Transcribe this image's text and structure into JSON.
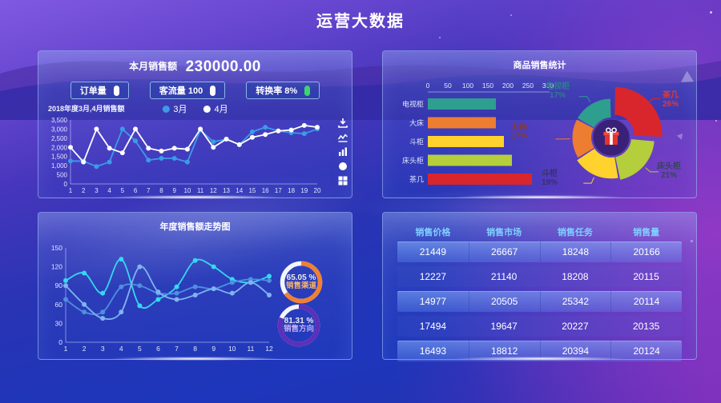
{
  "page_title": "运营大数据",
  "panel_sales": {
    "header_label": "本月销售额",
    "header_value": "230000.00",
    "buttons": [
      {
        "label": "订单量",
        "icon": "pill-indicator-icon",
        "icon_color": "#FFFFFF"
      },
      {
        "label": "客流量 100",
        "icon": "pill-indicator-icon",
        "icon_color": "#FFFFFF"
      },
      {
        "label": "转换率 8%",
        "icon": "pill-indicator-icon",
        "icon_color": "#3BD56B"
      }
    ],
    "toolbox": [
      "save-image-icon",
      "line-type-icon",
      "bar-type-icon",
      "restore-icon",
      "data-view-icon"
    ]
  },
  "chart_data": [
    {
      "type": "line",
      "title": "2018年度3月,4月销售额",
      "x": [
        1,
        2,
        3,
        4,
        5,
        6,
        7,
        8,
        9,
        10,
        11,
        12,
        13,
        14,
        15,
        16,
        17,
        18,
        19,
        20
      ],
      "ylim": [
        0,
        3500
      ],
      "ytick_step": 500,
      "grid": false,
      "legend_position": "top",
      "series": [
        {
          "name": "3月",
          "color": "#3C9BE8",
          "values": [
            1250,
            1250,
            950,
            1200,
            3000,
            2350,
            1300,
            1400,
            1400,
            1200,
            2950,
            2300,
            2450,
            2150,
            2850,
            3100,
            2900,
            2800,
            2750,
            3000
          ]
        },
        {
          "name": "4月",
          "color": "#FFFFFF",
          "values": [
            2000,
            1200,
            3000,
            1950,
            1700,
            3000,
            1950,
            1800,
            1950,
            1900,
            3000,
            2000,
            2450,
            2150,
            2550,
            2700,
            2900,
            2950,
            3200,
            3100
          ]
        }
      ]
    },
    {
      "type": "bar",
      "orientation": "horizontal",
      "title": "商品销售统计",
      "categories": [
        "电视柜",
        "大床",
        "斗柜",
        "床头柜",
        "茶几"
      ],
      "values": [
        170,
        170,
        190,
        210,
        260
      ],
      "colors": [
        "#2E9E8F",
        "#ED7D31",
        "#FFD22E",
        "#B5CE3C",
        "#D8262C"
      ],
      "xlim": [
        0,
        300
      ],
      "xtick_step": 50
    },
    {
      "type": "pie",
      "style": "rose-donut",
      "labels": [
        "茶几",
        "床头柜",
        "斗柜",
        "大床",
        "电视柜"
      ],
      "values": [
        26,
        21,
        19,
        17,
        17
      ],
      "pct_labels": [
        "26%",
        "21%",
        "19%",
        "17%",
        "17%"
      ],
      "colors": [
        "#D8262C",
        "#B5CE3C",
        "#FFD22E",
        "#ED7D31",
        "#2E9E8F"
      ],
      "label_colors": [
        "#E23A30",
        "#36455E",
        "#3B2F6E",
        "#8C3A2A",
        "#2F7D8C"
      ],
      "selected": "茶几",
      "center_icon": "gift-icon"
    },
    {
      "type": "line",
      "title": "年度销售额走势图",
      "x": [
        1,
        2,
        3,
        4,
        5,
        6,
        7,
        8,
        9,
        10,
        11,
        12
      ],
      "ylim": [
        0,
        150
      ],
      "ytick_step": 30,
      "smooth": true,
      "grid": false,
      "series": [
        {
          "color": "#35D8F0",
          "values": [
            98,
            110,
            78,
            132,
            58,
            68,
            88,
            130,
            120,
            100,
            95,
            105
          ]
        },
        {
          "color": "#4E8FE0",
          "values": [
            68,
            48,
            48,
            88,
            90,
            78,
            78,
            88,
            85,
            95,
            100,
            98
          ]
        },
        {
          "color": "#7FB4F0",
          "values": [
            90,
            60,
            38,
            48,
            120,
            80,
            68,
            75,
            85,
            78,
            95,
            75
          ]
        }
      ]
    },
    {
      "type": "gauge",
      "value_label": "65.05 %",
      "percent": 65.05,
      "label": "销售渠道",
      "color": "#F08033",
      "label_color": "#F5B26B"
    },
    {
      "type": "gauge",
      "value_label": "81.31 %",
      "percent": 81.31,
      "label": "销售方向",
      "color": "#5E2FB8",
      "label_color": "#C3AEF5"
    },
    {
      "type": "table",
      "headers": [
        "销售价格",
        "销售市场",
        "销售任务",
        "销售量"
      ],
      "rows": [
        [
          21449,
          26667,
          18248,
          20166
        ],
        [
          12227,
          21140,
          18208,
          20115
        ],
        [
          14977,
          20505,
          25342,
          20114
        ],
        [
          17494,
          19647,
          20227,
          20135
        ],
        [
          16493,
          18812,
          20394,
          20124
        ]
      ]
    }
  ]
}
